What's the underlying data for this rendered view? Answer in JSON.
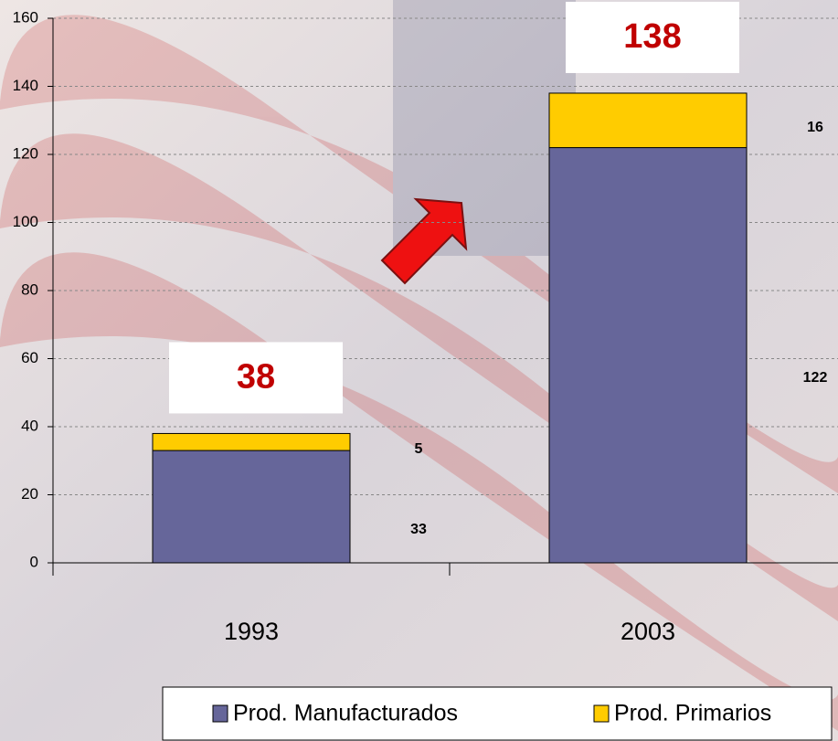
{
  "chart_data": {
    "type": "stacked_bar",
    "categories": [
      "1993",
      "2003"
    ],
    "series": [
      {
        "name": "Prod. Manufacturados",
        "color": "#66669a",
        "values": [
          33,
          122
        ]
      },
      {
        "name": "Prod. Primarios",
        "color": "#ffcc00",
        "values": [
          5,
          16
        ]
      }
    ],
    "totals": [
      38,
      138
    ],
    "ylim": [
      0,
      160
    ],
    "yticks": [
      0,
      20,
      40,
      60,
      80,
      100,
      120,
      140,
      160
    ],
    "grid": true
  }
}
